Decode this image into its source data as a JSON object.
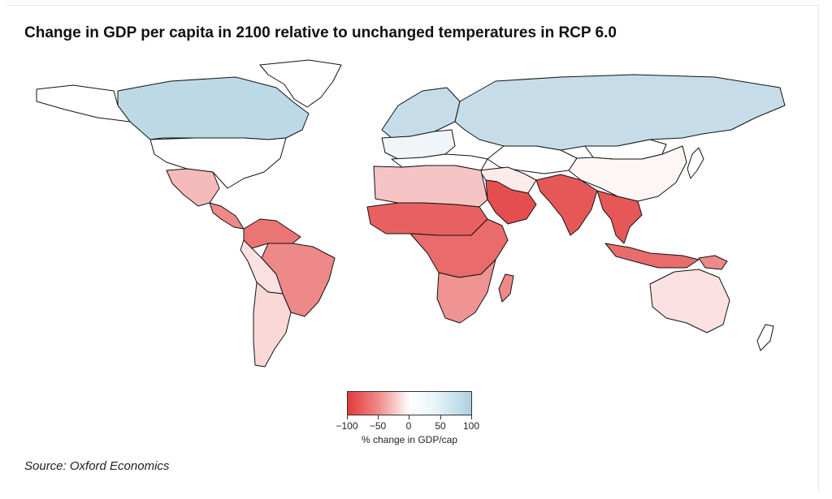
{
  "title": "Change in GDP per capita in 2100 relative to unchanged temperatures in RCP 6.0",
  "legend": {
    "ticks": [
      "−100",
      "−50",
      "0",
      "50",
      "100"
    ],
    "label": "% change in GDP/cap",
    "color_low": "#e23a3a",
    "color_mid": "#ffffff",
    "color_high": "#aecfe0"
  },
  "source": "Source: Oxford Economics",
  "regions": [
    {
      "name": "Canada",
      "change": 80
    },
    {
      "name": "Alaska",
      "change": 0
    },
    {
      "name": "United States",
      "change": 0
    },
    {
      "name": "Greenland",
      "change": 0
    },
    {
      "name": "Mexico",
      "change": -35
    },
    {
      "name": "Central America",
      "change": -60
    },
    {
      "name": "Northern South America",
      "change": -70
    },
    {
      "name": "Brazil",
      "change": -60
    },
    {
      "name": "Peru & Bolivia",
      "change": -15
    },
    {
      "name": "Southern Cone",
      "change": -20
    },
    {
      "name": "Northern Europe",
      "change": 70
    },
    {
      "name": "Western Europe",
      "change": 20
    },
    {
      "name": "Southern Europe",
      "change": 0
    },
    {
      "name": "Russia",
      "change": 70
    },
    {
      "name": "Central Asia",
      "change": 0
    },
    {
      "name": "Middle East",
      "change": -10
    },
    {
      "name": "Arabian Peninsula",
      "change": -90
    },
    {
      "name": "North Africa",
      "change": -30
    },
    {
      "name": "Sahel & West Africa",
      "change": -80
    },
    {
      "name": "East & Central Africa",
      "change": -75
    },
    {
      "name": "Southern Africa",
      "change": -55
    },
    {
      "name": "Madagascar",
      "change": -60
    },
    {
      "name": "India",
      "change": -85
    },
    {
      "name": "China",
      "change": -5
    },
    {
      "name": "Mongolia",
      "change": 0
    },
    {
      "name": "Japan",
      "change": 0
    },
    {
      "name": "Southeast Asia",
      "change": -85
    },
    {
      "name": "Indonesia",
      "change": -75
    },
    {
      "name": "Papua New Guinea",
      "change": -60
    },
    {
      "name": "Australia",
      "change": -15
    },
    {
      "name": "New Zealand",
      "change": 0
    }
  ]
}
